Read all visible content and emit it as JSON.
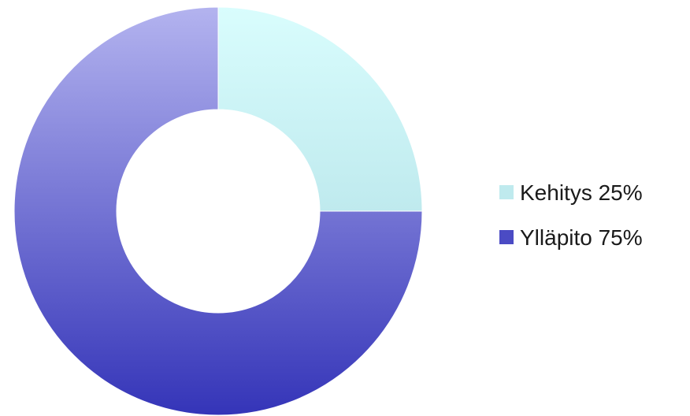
{
  "chart_data": {
    "type": "pie",
    "variant": "donut",
    "title": "",
    "slices": [
      {
        "label": "Kehitys 25%",
        "category": "Kehitys",
        "value": 25,
        "color_top": "#d9fdfd",
        "color_bottom": "#bfeaee"
      },
      {
        "label": "Ylläpito 75%",
        "category": "Ylläpito",
        "value": 75,
        "color_top": "#b3b3ef",
        "color_bottom": "#3434b8"
      }
    ],
    "legend_position": "right",
    "start_angle_deg": 0,
    "direction": "clockwise"
  }
}
